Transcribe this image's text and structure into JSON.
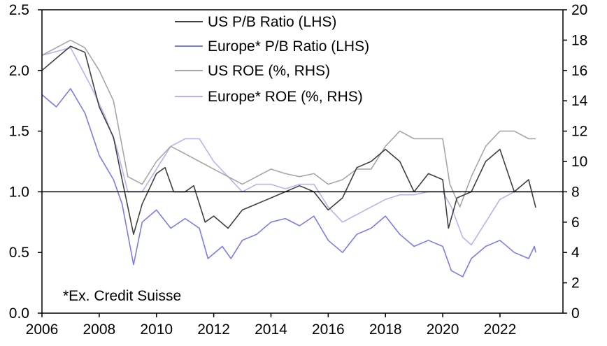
{
  "chart_data": {
    "type": "line",
    "title": "",
    "annotation": "*Ex. Credit Suisse",
    "xlim": [
      2006,
      2024.2
    ],
    "ylim_left": [
      0,
      2.5
    ],
    "ylim_right": [
      0,
      20
    ],
    "x_ticks": [
      "2006",
      "2008",
      "2010",
      "2012",
      "2014",
      "2016",
      "2018",
      "2020",
      "2022"
    ],
    "y_ticks_left": [
      "0.0",
      "0.5",
      "1.0",
      "1.5",
      "2.0",
      "2.5"
    ],
    "y_ticks_right": [
      "0",
      "2",
      "4",
      "6",
      "8",
      "10",
      "12",
      "14",
      "16",
      "18",
      "20"
    ],
    "reference_line_left": 1.0,
    "legend_position": "top-center",
    "series": [
      {
        "name": "US P/B Ratio (LHS)",
        "axis": "left",
        "color": "#404040",
        "x": [
          2006,
          2006.5,
          2007,
          2007.5,
          2008,
          2008.5,
          2008.8,
          2009.2,
          2009.5,
          2010,
          2010.3,
          2010.6,
          2011,
          2011.3,
          2011.7,
          2012,
          2012.5,
          2013,
          2013.5,
          2014,
          2014.5,
          2015,
          2015.5,
          2016,
          2016.5,
          2017,
          2017.5,
          2018,
          2018.5,
          2019,
          2019.5,
          2020,
          2020.2,
          2020.5,
          2021,
          2021.5,
          2022,
          2022.5,
          2023,
          2023.25
        ],
        "y": [
          2.0,
          2.1,
          2.2,
          2.15,
          1.7,
          1.45,
          1.1,
          0.65,
          0.9,
          1.15,
          1.2,
          1.0,
          1.0,
          1.05,
          0.75,
          0.8,
          0.7,
          0.85,
          0.9,
          0.95,
          1.0,
          1.05,
          1.0,
          0.85,
          0.95,
          1.2,
          1.25,
          1.35,
          1.25,
          1.0,
          1.15,
          1.1,
          0.7,
          0.95,
          1.0,
          1.25,
          1.35,
          1.0,
          1.1,
          0.87
        ]
      },
      {
        "name": "Europe* P/B Ratio (LHS)",
        "axis": "left",
        "color": "#7b7bf0",
        "x": [
          2006,
          2006.5,
          2007,
          2007.5,
          2008,
          2008.5,
          2008.8,
          2009.2,
          2009.5,
          2010,
          2010.5,
          2011,
          2011.5,
          2011.8,
          2012.3,
          2012.6,
          2013,
          2013.5,
          2014,
          2014.5,
          2015,
          2015.5,
          2016,
          2016.5,
          2017,
          2017.5,
          2018,
          2018.5,
          2019,
          2019.5,
          2020,
          2020.3,
          2020.7,
          2021,
          2021.5,
          2022,
          2022.5,
          2023,
          2023.2,
          2023.25
        ],
        "y": [
          1.8,
          1.7,
          1.85,
          1.65,
          1.3,
          1.1,
          0.9,
          0.4,
          0.75,
          0.85,
          0.7,
          0.78,
          0.7,
          0.45,
          0.55,
          0.45,
          0.6,
          0.65,
          0.75,
          0.78,
          0.72,
          0.8,
          0.6,
          0.5,
          0.65,
          0.7,
          0.8,
          0.65,
          0.55,
          0.6,
          0.55,
          0.35,
          0.3,
          0.45,
          0.55,
          0.6,
          0.5,
          0.45,
          0.55,
          0.5
        ]
      },
      {
        "name": "US ROE (%, RHS)",
        "axis": "right",
        "color": "#a6a6a6",
        "x": [
          2006,
          2007,
          2007.5,
          2008,
          2008.5,
          2009,
          2009.5,
          2010,
          2010.5,
          2011,
          2011.5,
          2012,
          2012.5,
          2013,
          2013.5,
          2014,
          2014.5,
          2015,
          2015.5,
          2016,
          2016.5,
          2017,
          2017.5,
          2018,
          2018.5,
          2019,
          2019.5,
          2020,
          2020.25,
          2020.6,
          2021,
          2021.5,
          2022,
          2022.5,
          2023,
          2023.25
        ],
        "y": [
          17,
          18,
          17.5,
          16,
          14,
          9,
          8.5,
          10,
          11,
          10.5,
          10,
          9.5,
          9,
          8.5,
          9,
          9.5,
          9.2,
          9,
          9.2,
          8.5,
          8.8,
          9.5,
          9.5,
          11,
          12,
          11.5,
          11.5,
          11.5,
          8.5,
          7,
          9,
          11,
          12,
          12,
          11.5,
          11.5
        ]
      },
      {
        "name": "Europe* ROE (%, RHS)",
        "axis": "right",
        "color": "#b4b4f5",
        "x": [
          2006,
          2007,
          2007.7,
          2008.2,
          2008.6,
          2009,
          2009.5,
          2010,
          2010.5,
          2011,
          2011.5,
          2012,
          2012.5,
          2013,
          2013.5,
          2014,
          2014.5,
          2015,
          2015.5,
          2016,
          2016.5,
          2017,
          2017.5,
          2018,
          2018.5,
          2019,
          2019.5,
          2020,
          2020.3,
          2020.7,
          2021,
          2021.5,
          2022,
          2022.5,
          2023,
          2023.25
        ],
        "y": [
          17,
          17.5,
          15,
          13,
          11,
          8,
          8,
          9.5,
          11,
          11.5,
          11.5,
          10,
          9,
          8,
          8.5,
          8.5,
          8.2,
          8.5,
          8.5,
          7,
          6,
          6.5,
          7,
          7.5,
          7.8,
          7.8,
          8,
          8,
          7,
          5,
          4.5,
          6,
          7.5,
          8,
          8,
          8
        ]
      }
    ]
  }
}
